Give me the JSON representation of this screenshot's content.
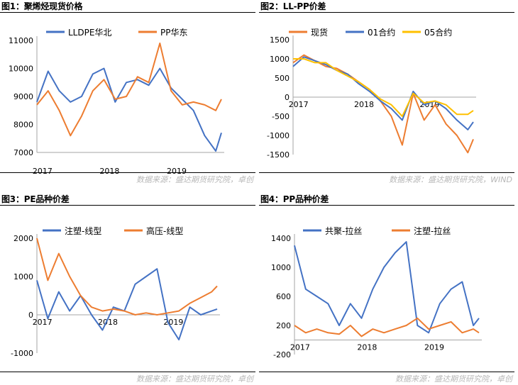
{
  "source_text_1": "数据来源：盛达期货研究院，卓创",
  "source_text_2": "数据来源：盛达期货研究院，WIND",
  "source_text_3": "数据来源：盛达期货研究院，卓创",
  "source_text_4": "数据来源：盛达期货研究院，卓创",
  "chart_data": [
    {
      "type": "line",
      "title": "图1：聚烯烃现货价格",
      "x_ticks": [
        "2017",
        "2018",
        "2019"
      ],
      "y_ticks": [
        "7000",
        "8000",
        "9000",
        "10000",
        "11000"
      ],
      "ylim": [
        7000,
        11000
      ],
      "grid": false,
      "legend_position": "top",
      "x": [
        "2016-12",
        "2017-02",
        "2017-04",
        "2017-06",
        "2017-08",
        "2017-10",
        "2017-12",
        "2018-02",
        "2018-04",
        "2018-06",
        "2018-08",
        "2018-10",
        "2018-12",
        "2019-02",
        "2019-04",
        "2019-06",
        "2019-08",
        "2019-09"
      ],
      "series": [
        {
          "name": "LLDPE华北",
          "color": "#4472C4",
          "values": [
            8800,
            9900,
            9200,
            8800,
            9000,
            9800,
            10000,
            8800,
            9500,
            9600,
            9400,
            10000,
            9300,
            8900,
            8500,
            7600,
            7050,
            7700
          ]
        },
        {
          "name": "PP华东",
          "color": "#ED7D31",
          "values": [
            8700,
            9200,
            8500,
            7600,
            8300,
            9200,
            9600,
            8900,
            9000,
            9700,
            9500,
            10900,
            9200,
            8700,
            8800,
            8700,
            8500,
            8900
          ]
        }
      ]
    },
    {
      "type": "line",
      "title": "图2：LL-PP价差",
      "x_ticks": [
        "2017",
        "2018",
        "2019"
      ],
      "y_ticks": [
        "-1500",
        "-1000",
        "-500",
        "0",
        "500",
        "1000",
        "1500"
      ],
      "ylim": [
        -1500,
        1500
      ],
      "grid": false,
      "legend_position": "top",
      "x": [
        "2016-12",
        "2017-02",
        "2017-04",
        "2017-06",
        "2017-08",
        "2017-10",
        "2017-12",
        "2018-02",
        "2018-04",
        "2018-06",
        "2018-08",
        "2018-10",
        "2018-12",
        "2019-02",
        "2019-04",
        "2019-06",
        "2019-08",
        "2019-09"
      ],
      "series": [
        {
          "name": "现货",
          "color": "#ED7D31",
          "values": [
            900,
            1100,
            950,
            800,
            750,
            600,
            400,
            200,
            -100,
            -500,
            -1250,
            100,
            -600,
            -200,
            -700,
            -1000,
            -1450,
            -1100
          ]
        },
        {
          "name": "01合约",
          "color": "#4472C4",
          "values": [
            800,
            1050,
            950,
            850,
            700,
            600,
            350,
            150,
            -100,
            -300,
            -600,
            150,
            -200,
            -100,
            -300,
            -600,
            -850,
            -650
          ]
        },
        {
          "name": "05合约",
          "color": "#FFC000",
          "values": [
            1000,
            1000,
            900,
            900,
            700,
            550,
            400,
            200,
            -50,
            -200,
            -500,
            100,
            -150,
            -100,
            -200,
            -450,
            -450,
            -350
          ]
        }
      ]
    },
    {
      "type": "line",
      "title": "图3：PE品种价差",
      "x_ticks": [
        "2017",
        "2018",
        "2019"
      ],
      "y_ticks": [
        "-1000",
        "0",
        "1000",
        "2000"
      ],
      "ylim": [
        -1000,
        2000
      ],
      "grid": false,
      "legend_position": "top",
      "x": [
        "2016-12",
        "2017-02",
        "2017-04",
        "2017-06",
        "2017-08",
        "2017-10",
        "2017-12",
        "2018-02",
        "2018-04",
        "2018-06",
        "2018-08",
        "2018-10",
        "2018-12",
        "2019-02",
        "2019-04",
        "2019-06",
        "2019-08",
        "2019-09"
      ],
      "series": [
        {
          "name": "注塑-线型",
          "color": "#4472C4",
          "values": [
            900,
            -100,
            600,
            100,
            500,
            0,
            -400,
            200,
            100,
            800,
            1000,
            1200,
            -200,
            -650,
            200,
            0,
            100,
            150
          ]
        },
        {
          "name": "高压-线型",
          "color": "#ED7D31",
          "values": [
            2000,
            900,
            1600,
            1000,
            500,
            200,
            100,
            150,
            100,
            0,
            50,
            0,
            50,
            100,
            300,
            450,
            600,
            750
          ]
        }
      ]
    },
    {
      "type": "line",
      "title": "图4：PP品种价差",
      "x_ticks": [
        "2017",
        "2018",
        "2019"
      ],
      "y_ticks": [
        "-200",
        "200",
        "600",
        "1000",
        "1400"
      ],
      "ylim": [
        -200,
        1400
      ],
      "grid": false,
      "legend_position": "top",
      "x": [
        "2016-12",
        "2017-02",
        "2017-04",
        "2017-06",
        "2017-08",
        "2017-10",
        "2017-12",
        "2018-02",
        "2018-04",
        "2018-06",
        "2018-08",
        "2018-10",
        "2018-12",
        "2019-02",
        "2019-04",
        "2019-06",
        "2019-08",
        "2019-09"
      ],
      "series": [
        {
          "name": "共聚-拉丝",
          "color": "#4472C4",
          "values": [
            1300,
            700,
            600,
            500,
            200,
            500,
            300,
            700,
            1000,
            1200,
            1350,
            200,
            100,
            500,
            700,
            800,
            200,
            300
          ]
        },
        {
          "name": "注塑-拉丝",
          "color": "#ED7D31",
          "values": [
            200,
            100,
            150,
            100,
            80,
            200,
            50,
            150,
            100,
            150,
            200,
            300,
            150,
            200,
            250,
            100,
            150,
            100
          ]
        }
      ]
    }
  ]
}
